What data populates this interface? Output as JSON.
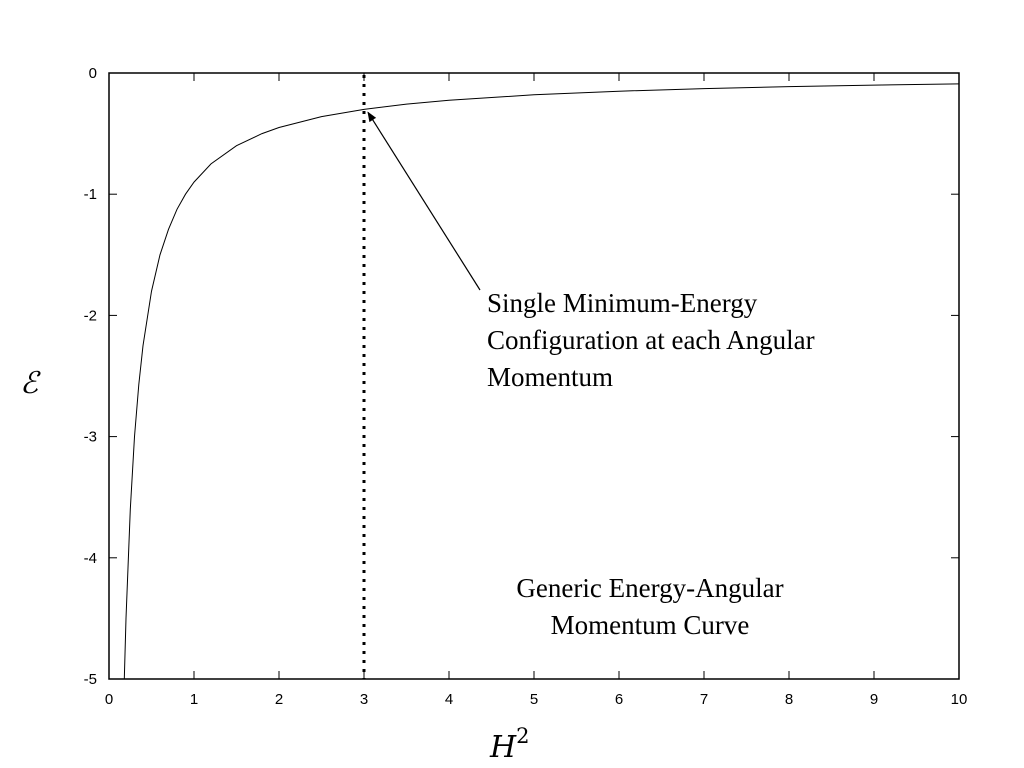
{
  "chart_data": {
    "type": "line",
    "xlabel": "H",
    "xlabel_sup": "2",
    "ylabel": "ℰ",
    "xlim": [
      0,
      10
    ],
    "ylim": [
      -5,
      0
    ],
    "x_ticks": [
      "0",
      "1",
      "2",
      "3",
      "4",
      "5",
      "6",
      "7",
      "8",
      "9",
      "10"
    ],
    "y_ticks": [
      "0",
      "-1",
      "-2",
      "-3",
      "-4",
      "-5"
    ],
    "grid": false,
    "series": [
      {
        "x": [
          0.18,
          0.2,
          0.25,
          0.3,
          0.35,
          0.4,
          0.5,
          0.6,
          0.7,
          0.8,
          0.9,
          1.0,
          1.2,
          1.5,
          1.8,
          2.0,
          2.5,
          3.0,
          3.5,
          4.0,
          5.0,
          6.0,
          7.0,
          8.0,
          9.0,
          10.0
        ],
        "y": [
          -5.0,
          -4.5,
          -3.6,
          -3.0,
          -2.57,
          -2.25,
          -1.8,
          -1.5,
          -1.29,
          -1.125,
          -1.0,
          -0.9,
          -0.75,
          -0.6,
          -0.5,
          -0.45,
          -0.36,
          -0.3,
          -0.257,
          -0.225,
          -0.18,
          -0.15,
          -0.129,
          -0.1125,
          -0.1,
          -0.09
        ]
      }
    ],
    "marker_line": {
      "x": 3,
      "style": "dotted"
    },
    "annotations": [
      {
        "lines": [
          "Single Minimum-Energy",
          "Configuration at each Angular",
          "Momentum"
        ],
        "points_to": {
          "x": 3,
          "y": -0.3
        }
      },
      {
        "lines": [
          "Generic Energy-Angular",
          "Momentum Curve"
        ]
      }
    ]
  }
}
